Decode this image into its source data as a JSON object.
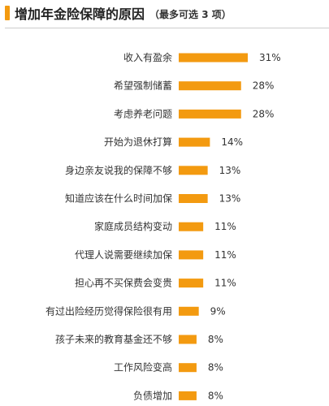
{
  "title": "增加年金险保障的原因",
  "subtitle": "（最多可选 3 项）",
  "colors": {
    "accent": "#f39a10",
    "bar": "#f39a10",
    "text": "#333333"
  },
  "chart_data": {
    "type": "bar",
    "orientation": "horizontal",
    "categories": [
      "收入有盈余",
      "希望强制储蓄",
      "考虑养老问题",
      "开始为退休打算",
      "身边亲友说我的保障不够",
      "知道应该在什么时间加保",
      "家庭成员结构变动",
      "代理人说需要继续加保",
      "担心再不买保费会变贵",
      "有过出险经历觉得保险很有用",
      "孩子未来的教育基金还不够",
      "工作风险变高",
      "负债增加"
    ],
    "values": [
      31,
      28,
      28,
      14,
      13,
      13,
      11,
      11,
      11,
      9,
      8,
      8,
      8
    ],
    "value_labels": [
      "31%",
      "28%",
      "28%",
      "14%",
      "13%",
      "13%",
      "11%",
      "11%",
      "11%",
      "9%",
      "8%",
      "8%",
      "8%"
    ],
    "unit": "%",
    "grid": false
  }
}
